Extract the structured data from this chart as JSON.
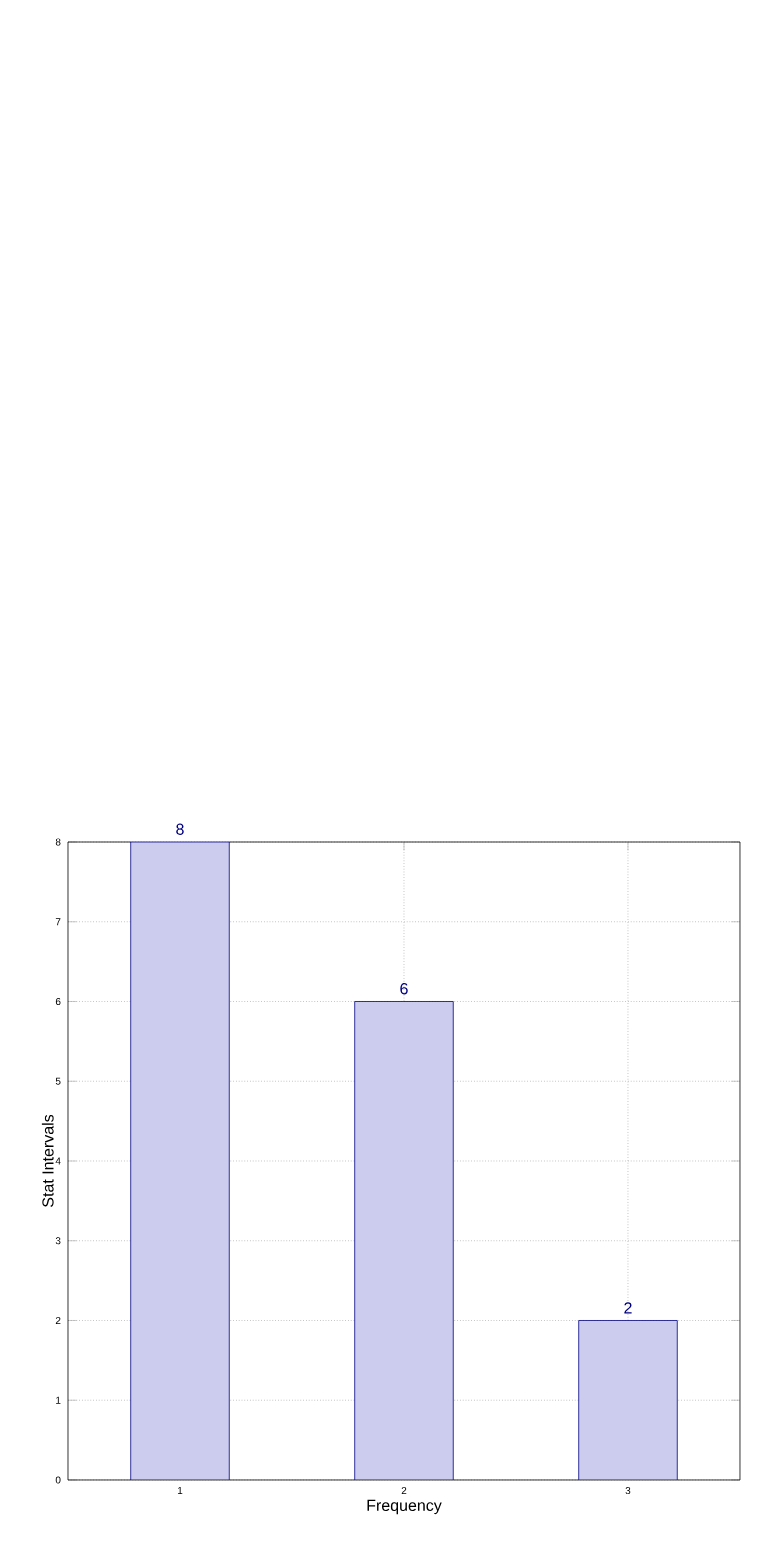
{
  "chart_data": {
    "type": "bar",
    "xlabel": "Frequency",
    "ylabel": "Stat Intervals",
    "categories": [
      "1",
      "2",
      "3"
    ],
    "values": [
      8,
      6,
      2
    ],
    "color": "#ccccee",
    "ylim": [
      0,
      8
    ],
    "yticks": [
      0,
      1,
      2,
      3,
      4,
      5,
      6,
      7,
      8
    ],
    "grid": true,
    "data_labels": true
  }
}
